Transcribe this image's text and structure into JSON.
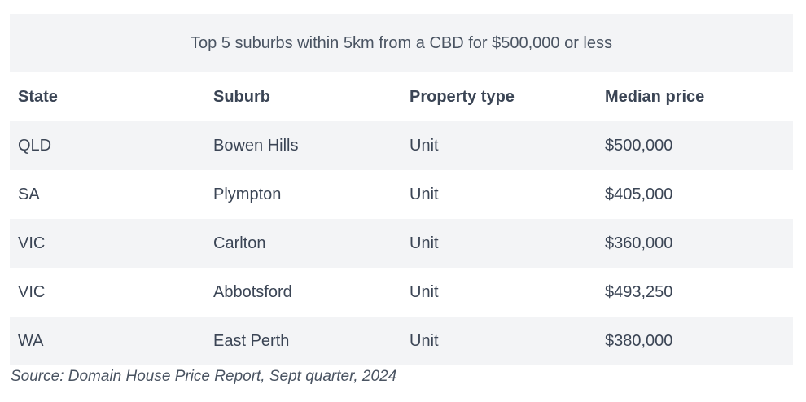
{
  "table": {
    "caption": "Top 5 suburbs within 5km from a CBD for $500,000 or less",
    "headers": [
      "State",
      "Suburb",
      "Property type",
      "Median price"
    ],
    "rows": [
      [
        "QLD",
        "Bowen Hills",
        "Unit",
        "$500,000"
      ],
      [
        "SA",
        "Plympton",
        "Unit",
        "$405,000"
      ],
      [
        "VIC",
        "Carlton",
        "Unit",
        "$360,000"
      ],
      [
        "VIC",
        "Abbotsford",
        "Unit",
        "$493,250"
      ],
      [
        "WA",
        "East Perth",
        "Unit",
        "$380,000"
      ]
    ]
  },
  "source": "Source: Domain House Price Report, Sept quarter, 2024",
  "colors": {
    "shade": "#f3f4f6",
    "text": "#3b4555"
  }
}
